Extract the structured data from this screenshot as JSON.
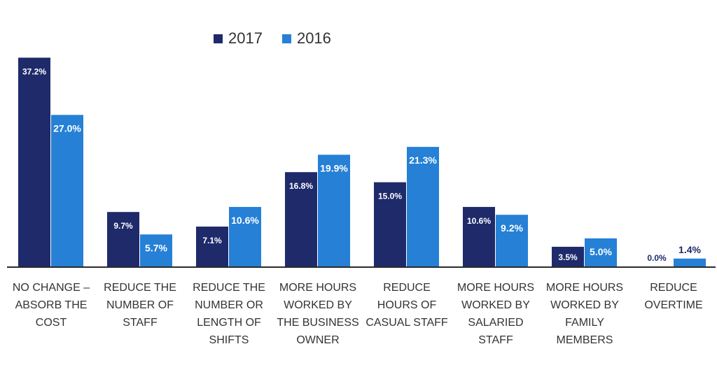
{
  "legend": {
    "series_2017": "2017",
    "series_2016": "2016"
  },
  "colors": {
    "2017": "#1f2a6b",
    "2016": "#2580d6",
    "label_inside": "#ffffff",
    "label_outside": "#1f2a6b",
    "axis": "#333333"
  },
  "chart_data": {
    "type": "bar",
    "title": "",
    "xlabel": "",
    "ylabel": "",
    "ylim": [
      0,
      40
    ],
    "grid": false,
    "legend_position": "top",
    "categories": [
      [
        "NO CHANGE –",
        "ABSORB THE",
        "COST"
      ],
      [
        "REDUCE THE",
        "NUMBER OF",
        "STAFF"
      ],
      [
        "REDUCE THE",
        "NUMBER OR",
        "LENGTH OF",
        "SHIFTS"
      ],
      [
        "MORE HOURS",
        "WORKED BY",
        "THE BUSINESS",
        "OWNER"
      ],
      [
        "REDUCE",
        "HOURS OF",
        "CASUAL STAFF"
      ],
      [
        "MORE HOURS",
        "WORKED BY",
        "SALARIED",
        "STAFF"
      ],
      [
        "MORE HOURS",
        "WORKED BY",
        "FAMILY",
        "MEMBERS"
      ],
      [
        "REDUCE",
        "OVERTIME"
      ]
    ],
    "series": [
      {
        "name": "2017",
        "values": [
          37.2,
          9.7,
          7.1,
          16.8,
          15.0,
          10.6,
          3.5,
          0.0
        ],
        "labels": [
          "37.2%",
          "9.7%",
          "7.1%",
          "16.8%",
          "15.0%",
          "10.6%",
          "3.5%",
          "0.0%"
        ]
      },
      {
        "name": "2016",
        "values": [
          27.0,
          5.7,
          10.6,
          19.9,
          21.3,
          9.2,
          5.0,
          1.4
        ],
        "labels": [
          "27.0%",
          "5.7%",
          "10.6%",
          "19.9%",
          "21.3%",
          "9.2%",
          "5.0%",
          "1.4%"
        ]
      }
    ]
  }
}
